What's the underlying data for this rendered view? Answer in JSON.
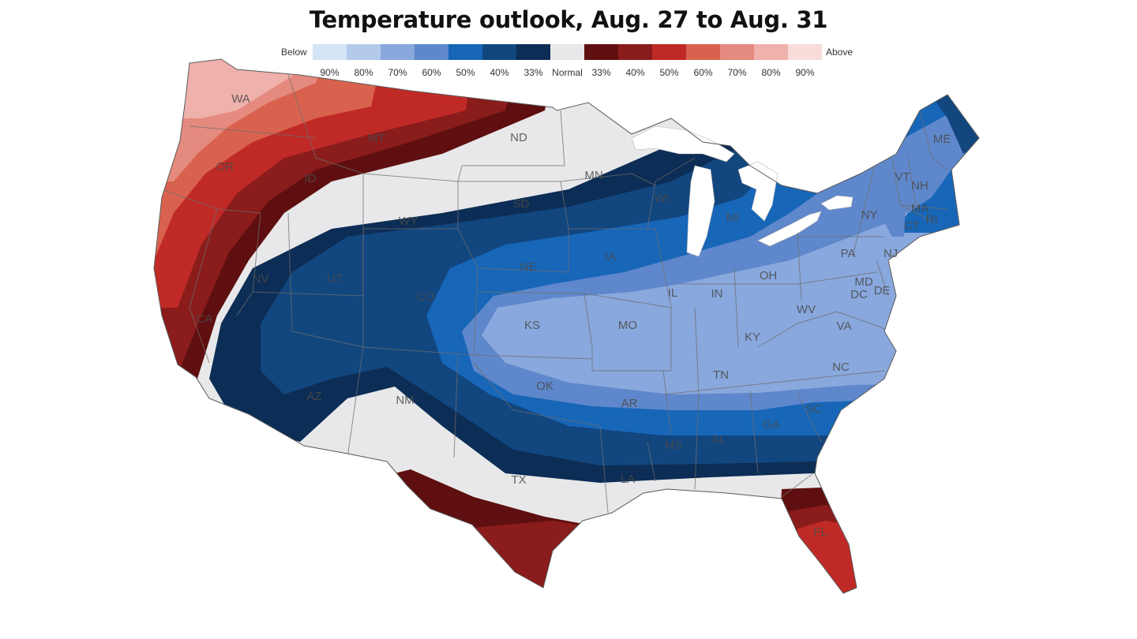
{
  "title": "Temperature outlook, Aug. 27 to Aug. 31",
  "legend": {
    "below_label": "Below",
    "above_label": "Above",
    "items": [
      {
        "label": "90%",
        "color": "#d4e4f7",
        "category": "below"
      },
      {
        "label": "80%",
        "color": "#b3caeb",
        "category": "below"
      },
      {
        "label": "70%",
        "color": "#89a8dd",
        "category": "below"
      },
      {
        "label": "60%",
        "color": "#5f87cb",
        "category": "below"
      },
      {
        "label": "50%",
        "color": "#1766b8",
        "category": "below"
      },
      {
        "label": "40%",
        "color": "#12467f",
        "category": "below"
      },
      {
        "label": "33%",
        "color": "#0c2d55",
        "category": "below"
      },
      {
        "label": "Normal",
        "color": "#e8e8ea",
        "category": "normal"
      },
      {
        "label": "33%",
        "color": "#5f0f0f",
        "category": "above"
      },
      {
        "label": "40%",
        "color": "#8a1c1c",
        "category": "above"
      },
      {
        "label": "50%",
        "color": "#c02a26",
        "category": "above"
      },
      {
        "label": "60%",
        "color": "#d9624e",
        "category": "above"
      },
      {
        "label": "70%",
        "color": "#e58a7f",
        "category": "above"
      },
      {
        "label": "80%",
        "color": "#efb1ab",
        "category": "above"
      },
      {
        "label": "90%",
        "color": "#f8dcda",
        "category": "above"
      }
    ]
  },
  "states": [
    "WA",
    "OR",
    "MT",
    "ND",
    "MN",
    "ME",
    "ID",
    "SD",
    "WI",
    "VT",
    "NH",
    "WY",
    "MI",
    "NY",
    "MA",
    "CT",
    "RI",
    "NV",
    "UT",
    "NE",
    "IA",
    "PA",
    "NJ",
    "OH",
    "MD",
    "DE",
    "DC",
    "IL",
    "IN",
    "CO",
    "KS",
    "MO",
    "WV",
    "VA",
    "CA",
    "KY",
    "TN",
    "NC",
    "OK",
    "AR",
    "AZ",
    "NM",
    "SC",
    "GA",
    "AL",
    "MS",
    "TX",
    "LA",
    "FL"
  ]
}
